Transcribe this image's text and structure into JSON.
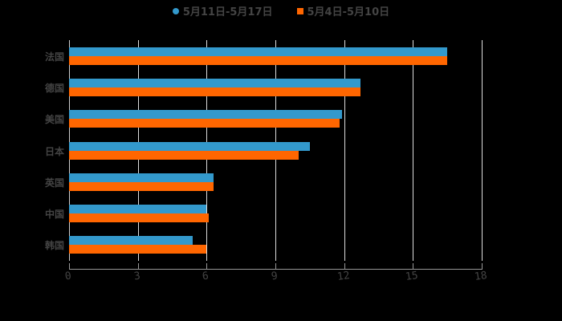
{
  "chart_data": {
    "type": "bar",
    "orientation": "horizontal",
    "title": "",
    "xlabel": "",
    "ylabel": "",
    "categories": [
      "法国",
      "德国",
      "美国",
      "日本",
      "英国",
      "中国",
      "韩国"
    ],
    "series": [
      {
        "name": "5月11日-5月17日",
        "color": "#3399cc",
        "values": [
          16.5,
          12.7,
          11.9,
          10.5,
          6.3,
          6.0,
          5.4
        ]
      },
      {
        "name": "5月4日-5月10日",
        "color": "#ff6600",
        "values": [
          16.5,
          12.7,
          11.8,
          10.0,
          6.3,
          6.1,
          6.0
        ]
      }
    ],
    "xlim": [
      0,
      18
    ],
    "xticks": [
      0,
      3,
      6,
      9,
      12,
      15,
      18
    ],
    "grid": true,
    "legend_position": "top"
  },
  "legend": {
    "items": [
      {
        "label": "5月11日-5月17日",
        "color": "#3399cc",
        "marker": "circle"
      },
      {
        "label": "5月4日-5月10日",
        "color": "#ff6600",
        "marker": "square"
      }
    ]
  },
  "axis": {
    "ticks": [
      "0",
      "3",
      "6",
      "9",
      "12",
      "15",
      "18"
    ]
  }
}
